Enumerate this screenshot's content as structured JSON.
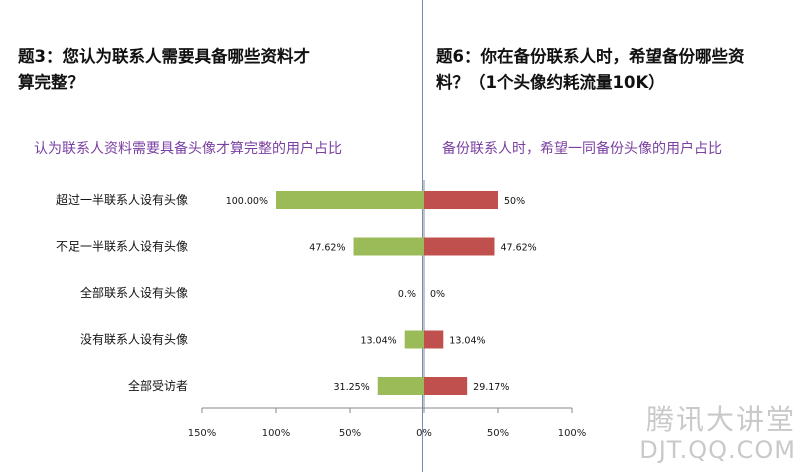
{
  "q3_title_line1": "题3：您认为联系人需要具备哪些资料才",
  "q3_title_line2": "算完整？",
  "q6_title_line1": "题6：你在备份联系人时，希望备份哪些资",
  "q6_title_line2": "料？（1个头像约耗流量10K）",
  "q3_subtitle": "认为联系人资料需要具备头像才算完整的用户占比",
  "q6_subtitle": "备份联系人时，希望一同备份头像的用户占比",
  "watermark_line1": "腾讯大讲堂",
  "watermark_line2": "DJT.QQ.COM",
  "chart_data": {
    "type": "bar",
    "orientation": "horizontal",
    "categories": [
      "超过一半联系人设有头像",
      "不足一半联系人设有头像",
      "全部联系人设有头像",
      "没有联系人设有头像",
      "全部受访者"
    ],
    "series": [
      {
        "values": [
          100.0,
          47.62,
          0.0,
          13.04,
          31.25
        ],
        "labels": [
          "100.00%",
          "47.62%",
          "0.%",
          "13.04%",
          "31.25%"
        ],
        "color": "#9bbb59",
        "direction": "left"
      },
      {
        "values": [
          50.0,
          47.62,
          0.0,
          13.04,
          29.17
        ],
        "labels": [
          "50%",
          "47.62%",
          "0%",
          "13.04%",
          "29.17%"
        ],
        "color": "#c0504d",
        "direction": "right"
      }
    ],
    "xlim": [
      -150,
      100
    ],
    "x_ticks": [
      -150,
      -100,
      -50,
      0,
      50,
      100
    ],
    "x_tick_labels": [
      "150%",
      "100%",
      "50%",
      "0%",
      "50%",
      "100%"
    ],
    "grid": false,
    "legend": "none"
  }
}
